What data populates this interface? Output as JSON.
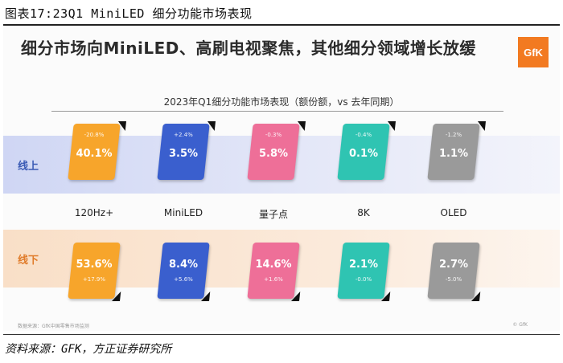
{
  "figure_title": "图表17:23Q1 MiniLED 细分功能市场表现",
  "headline": "细分市场向MiniLED、高刷电视聚焦，其他细分领域增长放缓",
  "logo_text": "GfK",
  "footnote_left": "数据来源：GfK中国零售市场监测",
  "footnote_right": "© GfK",
  "source": "资料来源：GFK，方正证券研究所",
  "colors": {
    "120Hz+": "#f7a52b",
    "MiniLED": "#3a5fce",
    "量子点": "#ee6f98",
    "8K": "#2fc4b2",
    "OLED": "#9a9a9a"
  },
  "chart_data": {
    "type": "table",
    "title": "2023年Q1细分功能市场表现（额份额，vs 去年同期）",
    "categories": [
      "120Hz+",
      "MiniLED",
      "量子点",
      "8K",
      "OLED"
    ],
    "rows": [
      {
        "name": "线上",
        "share": [
          "40.1%",
          "3.5%",
          "5.8%",
          "0.1%",
          "1.1%"
        ],
        "change": [
          "-20.8%",
          "+2.4%",
          "-0.3%",
          "-0.4%",
          "-1.2%"
        ]
      },
      {
        "name": "线下",
        "share": [
          "53.6%",
          "8.4%",
          "14.6%",
          "2.1%",
          "2.7%"
        ],
        "change": [
          "+17.9%",
          "+5.6%",
          "+1.6%",
          "-0.0%",
          "-5.0%"
        ]
      }
    ]
  }
}
